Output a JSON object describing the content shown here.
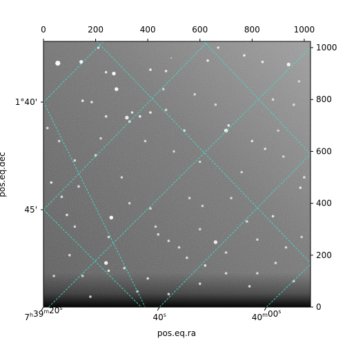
{
  "chart_data": {
    "type": "scatter",
    "xlabel": "pos.eq.ra",
    "ylabel": "pos.eq.dec",
    "pixel_axis": {
      "xlim": [
        0,
        1024
      ],
      "ylim": [
        0,
        1024
      ],
      "top_ticks": [
        0,
        200,
        400,
        600,
        800,
        1000
      ],
      "right_ticks": [
        0,
        200,
        400,
        600,
        800,
        1000
      ]
    },
    "ra_ticks": [
      {
        "label": "7h39m20s",
        "base": "7",
        "sup1": "h",
        "mid": "39",
        "sup2": "m",
        "tail": "20",
        "sup3": "s",
        "x": 0
      },
      {
        "label": "40s",
        "base": "40",
        "sup3": "s",
        "x": 445
      },
      {
        "label": "40m00s",
        "base": "40",
        "sup2": "m",
        "tail": "00",
        "sup3": "s",
        "x": 855
      }
    ],
    "dec_ticks": [
      {
        "label": "1°40'",
        "y": 790
      },
      {
        "label": "45'",
        "y": 375
      }
    ],
    "grid": true,
    "grid_color": "#40e0d0",
    "image_colormap": "gray",
    "stars": [
      [
        55,
        940,
        4,
        0.95
      ],
      [
        145,
        945,
        3,
        0.9
      ],
      [
        210,
        1000,
        2,
        0.8
      ],
      [
        240,
        905,
        2,
        0.7
      ],
      [
        270,
        900,
        3,
        0.95
      ],
      [
        410,
        915,
        2,
        0.85
      ],
      [
        470,
        910,
        2,
        0.7
      ],
      [
        490,
        960,
        1,
        0.7
      ],
      [
        630,
        950,
        2,
        0.8
      ],
      [
        670,
        1000,
        2,
        0.7
      ],
      [
        770,
        970,
        2,
        0.8
      ],
      [
        840,
        945,
        2,
        0.8
      ],
      [
        940,
        935,
        3,
        0.85
      ],
      [
        150,
        795,
        2,
        0.8
      ],
      [
        185,
        790,
        2,
        0.7
      ],
      [
        280,
        840,
        3,
        0.9
      ],
      [
        320,
        730,
        3,
        0.8
      ],
      [
        330,
        715,
        2,
        0.7
      ],
      [
        340,
        750,
        2,
        0.7
      ],
      [
        370,
        735,
        2,
        0.8
      ],
      [
        410,
        750,
        2,
        0.8
      ],
      [
        240,
        735,
        2,
        0.7
      ],
      [
        470,
        760,
        2,
        0.6
      ],
      [
        540,
        680,
        2,
        0.75
      ],
      [
        700,
        680,
        3,
        0.9
      ],
      [
        710,
        700,
        2,
        0.8
      ],
      [
        800,
        640,
        2,
        0.7
      ],
      [
        850,
        610,
        2,
        0.65
      ],
      [
        30,
        480,
        2,
        0.8
      ],
      [
        70,
        425,
        2,
        0.6
      ],
      [
        90,
        355,
        2,
        0.7
      ],
      [
        120,
        565,
        2,
        0.6
      ],
      [
        135,
        465,
        2,
        0.6
      ],
      [
        200,
        585,
        2,
        0.6
      ],
      [
        260,
        345,
        3,
        0.95
      ],
      [
        300,
        500,
        2,
        0.6
      ],
      [
        330,
        400,
        2,
        0.55
      ],
      [
        410,
        380,
        2,
        0.6
      ],
      [
        440,
        280,
        2,
        0.6
      ],
      [
        480,
        255,
        2,
        0.6
      ],
      [
        520,
        230,
        2,
        0.6
      ],
      [
        560,
        420,
        2,
        0.55
      ],
      [
        610,
        390,
        2,
        0.55
      ],
      [
        660,
        250,
        3,
        0.8
      ],
      [
        700,
        210,
        2,
        0.6
      ],
      [
        780,
        330,
        2,
        0.6
      ],
      [
        880,
        350,
        2,
        0.7
      ],
      [
        985,
        460,
        2,
        0.75
      ],
      [
        1000,
        500,
        2,
        0.7
      ],
      [
        120,
        310,
        2,
        0.55
      ],
      [
        100,
        200,
        2,
        0.6
      ],
      [
        240,
        170,
        3,
        0.85
      ],
      [
        250,
        140,
        2,
        0.7
      ],
      [
        310,
        150,
        2,
        0.6
      ],
      [
        400,
        110,
        2,
        0.6
      ],
      [
        550,
        190,
        2,
        0.6
      ],
      [
        620,
        160,
        2,
        0.7
      ],
      [
        700,
        130,
        2,
        0.6
      ],
      [
        790,
        80,
        2,
        0.6
      ],
      [
        890,
        170,
        2,
        0.6
      ],
      [
        930,
        230,
        2,
        0.6
      ],
      [
        990,
        270,
        2,
        0.55
      ],
      [
        180,
        40,
        2,
        0.5
      ],
      [
        360,
        60,
        2,
        0.55
      ],
      [
        480,
        50,
        2,
        0.5
      ],
      [
        600,
        90,
        2,
        0.55
      ],
      [
        820,
        130,
        2,
        0.55
      ],
      [
        960,
        100,
        2,
        0.5
      ],
      [
        15,
        690,
        2,
        0.6
      ],
      [
        60,
        640,
        2,
        0.55
      ],
      [
        220,
        650,
        2,
        0.55
      ],
      [
        390,
        640,
        2,
        0.55
      ],
      [
        600,
        560,
        2,
        0.55
      ],
      [
        760,
        520,
        2,
        0.55
      ],
      [
        920,
        580,
        2,
        0.55
      ],
      [
        960,
        780,
        2,
        0.6
      ],
      [
        880,
        800,
        2,
        0.6
      ],
      [
        580,
        820,
        2,
        0.55
      ],
      [
        250,
        270,
        2,
        0.6
      ],
      [
        430,
        310,
        2,
        0.55
      ],
      [
        820,
        260,
        2,
        0.55
      ],
      [
        720,
        420,
        2,
        0.55
      ],
      [
        600,
        300,
        2,
        0.5
      ],
      [
        150,
        120,
        2,
        0.5
      ],
      [
        40,
        120,
        2,
        0.5
      ],
      [
        500,
        600,
        2,
        0.5
      ],
      [
        660,
        780,
        2,
        0.55
      ],
      [
        900,
        680,
        2,
        0.5
      ],
      [
        980,
        870,
        2,
        0.55
      ],
      [
        460,
        840,
        2,
        0.5
      ]
    ]
  }
}
